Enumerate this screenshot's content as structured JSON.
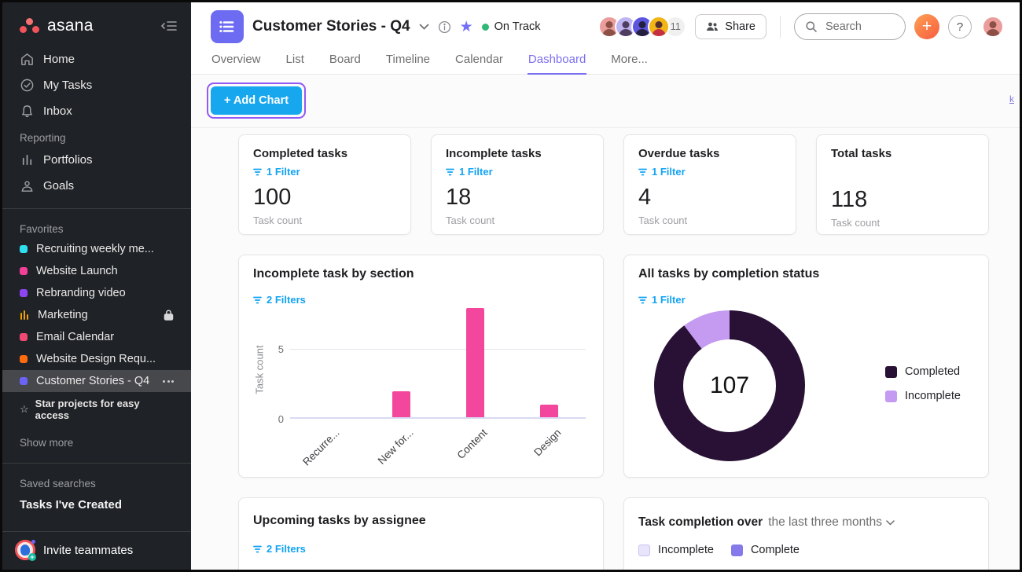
{
  "sidebar": {
    "logo_text": "asana",
    "nav": [
      {
        "label": "Home"
      },
      {
        "label": "My Tasks"
      },
      {
        "label": "Inbox"
      }
    ],
    "reporting_label": "Reporting",
    "reporting_items": [
      {
        "label": "Portfolios"
      },
      {
        "label": "Goals"
      }
    ],
    "favorites_label": "Favorites",
    "favorites": [
      {
        "label": "Recruiting weekly me...",
        "color": "#2ee0ef"
      },
      {
        "label": "Website Launch",
        "color": "#f23f97"
      },
      {
        "label": "Rebranding video",
        "color": "#8d45f3"
      },
      {
        "label": "Marketing",
        "color": "#f2a100",
        "locked": true
      },
      {
        "label": "Email Calendar",
        "color": "#f04a74"
      },
      {
        "label": "Website Design Requ...",
        "color": "#ff6b0f"
      },
      {
        "label": "Customer Stories - Q4",
        "color": "#6b63f5",
        "selected": true
      }
    ],
    "star_hint": "Star projects for easy access",
    "show_more_label": "Show more",
    "saved_searches_label": "Saved searches",
    "saved_search_item": "Tasks I've Created",
    "invite_label": "Invite teammates"
  },
  "header": {
    "project_title": "Customer Stories - Q4",
    "status_label": "On Track",
    "status_color": "#30b976",
    "member_count": "11",
    "share_label": "Share",
    "search_placeholder": "Search",
    "add_label": "+",
    "help_label": "?"
  },
  "tabs": [
    {
      "label": "Overview"
    },
    {
      "label": "List"
    },
    {
      "label": "Board"
    },
    {
      "label": "Timeline"
    },
    {
      "label": "Calendar"
    },
    {
      "label": "Dashboard",
      "active": true
    },
    {
      "label": "More..."
    }
  ],
  "toolbar": {
    "add_chart_label": "+ Add Chart",
    "edge_link_text": "k"
  },
  "stat_cards": [
    {
      "title": "Completed tasks",
      "filter_label": "1 Filter",
      "value": "100",
      "unit": "Task count"
    },
    {
      "title": "Incomplete tasks",
      "filter_label": "1 Filter",
      "value": "18",
      "unit": "Task count"
    },
    {
      "title": "Overdue tasks",
      "filter_label": "1 Filter",
      "value": "4",
      "unit": "Task count"
    },
    {
      "title": "Total tasks",
      "value": "118",
      "unit": "Task count"
    }
  ],
  "charts": {
    "bar": {
      "type": "bar",
      "title": "Incomplete task by section",
      "filter_label": "2 Filters",
      "ylabel": "Task count",
      "yticks": [
        "5",
        "0"
      ],
      "ymax": 8,
      "categories": [
        "Recurre...",
        "New for...",
        "Content",
        "Design"
      ],
      "values": [
        0,
        2,
        8,
        1
      ],
      "bar_color": "#f2479d"
    },
    "donut": {
      "type": "pie",
      "title": "All tasks by completion status",
      "filter_label": "1 Filter",
      "center_value": "107",
      "segments": [
        {
          "label": "Completed",
          "value": 96,
          "color": "#291135"
        },
        {
          "label": "Incomplete",
          "value": 11,
          "color": "#c49bf0"
        }
      ]
    },
    "upcoming": {
      "title": "Upcoming tasks by assignee",
      "filter_label": "2 Filters"
    },
    "completion_over_time": {
      "title_prefix": "Task completion over",
      "range_label": "the last three months",
      "legend": [
        {
          "label": "Incomplete",
          "color": "#e7e4fb"
        },
        {
          "label": "Complete",
          "color": "#8679ea"
        }
      ]
    }
  }
}
